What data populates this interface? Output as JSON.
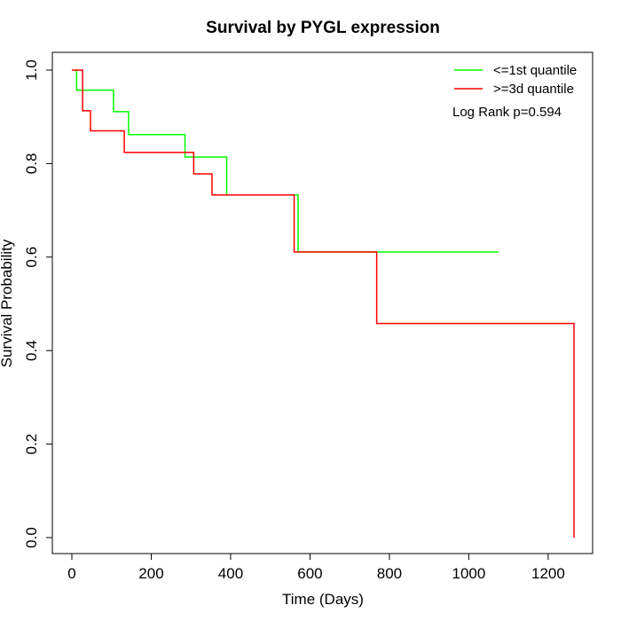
{
  "chart_data": {
    "type": "line",
    "title": "Survival by PYGL expression",
    "xlabel": "Time (Days)",
    "ylabel": "Survival Probability",
    "xlim": [
      0,
      1265
    ],
    "ylim": [
      0,
      1.0
    ],
    "x_ticks": [
      0,
      200,
      400,
      600,
      800,
      1000,
      1200
    ],
    "x_tick_labels": [
      "0",
      "200",
      "400",
      "600",
      "800",
      "1000",
      "1200"
    ],
    "y_ticks": [
      0.0,
      0.2,
      0.4,
      0.6,
      0.8,
      1.0
    ],
    "y_tick_labels": [
      "0.0",
      "0.2",
      "0.4",
      "0.6",
      "0.8",
      "1.0"
    ],
    "grid": false,
    "legend_position": "top-right",
    "annotation": "Log Rank p=0.594",
    "series": [
      {
        "name": "<=1st quantile",
        "color": "#00ff00",
        "step": true,
        "x": [
          5,
          12,
          105,
          143,
          285,
          390,
          570,
          1075
        ],
        "y": [
          1.0,
          0.957,
          0.911,
          0.862,
          0.814,
          0.733,
          0.611,
          0.611
        ]
      },
      {
        "name": ">=3d quantile",
        "color": "#ff0000",
        "step": true,
        "x": [
          0,
          27,
          47,
          132,
          307,
          353,
          560,
          768,
          1265,
          1265
        ],
        "y": [
          1.0,
          0.913,
          0.87,
          0.824,
          0.778,
          0.733,
          0.611,
          0.458,
          0.458,
          0.0
        ]
      }
    ]
  }
}
